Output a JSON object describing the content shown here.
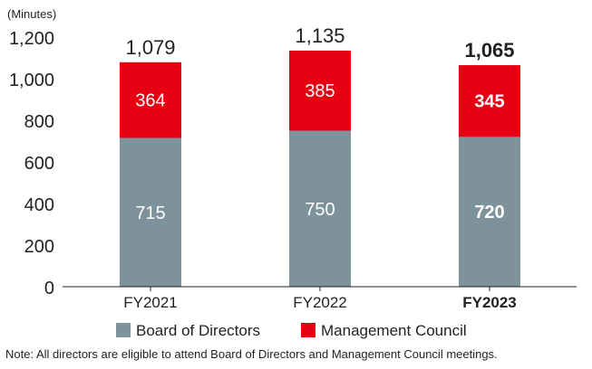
{
  "chart_data": {
    "type": "bar",
    "stacked": true,
    "unit_label": "(Minutes)",
    "categories": [
      "FY2021",
      "FY2022",
      "FY2023"
    ],
    "highlight_category": "FY2023",
    "series": [
      {
        "name": "Board of Directors",
        "color": "#7d929b",
        "values": [
          715,
          750,
          720
        ]
      },
      {
        "name": "Management Council",
        "color": "#e60012",
        "values": [
          364,
          385,
          345
        ]
      }
    ],
    "totals": [
      1079,
      1135,
      1065
    ],
    "total_labels": [
      "1,079",
      "1,135",
      "1,065"
    ],
    "ylim": [
      0,
      1200
    ],
    "yticks": [
      0,
      200,
      400,
      600,
      800,
      1000,
      1200
    ],
    "ytick_labels": [
      "0",
      "200",
      "400",
      "600",
      "800",
      "1,000",
      "1,200"
    ],
    "legend_position": "bottom",
    "grid": false
  },
  "note": "Note: All directors are eligible to attend Board of Directors and Management Council meetings."
}
